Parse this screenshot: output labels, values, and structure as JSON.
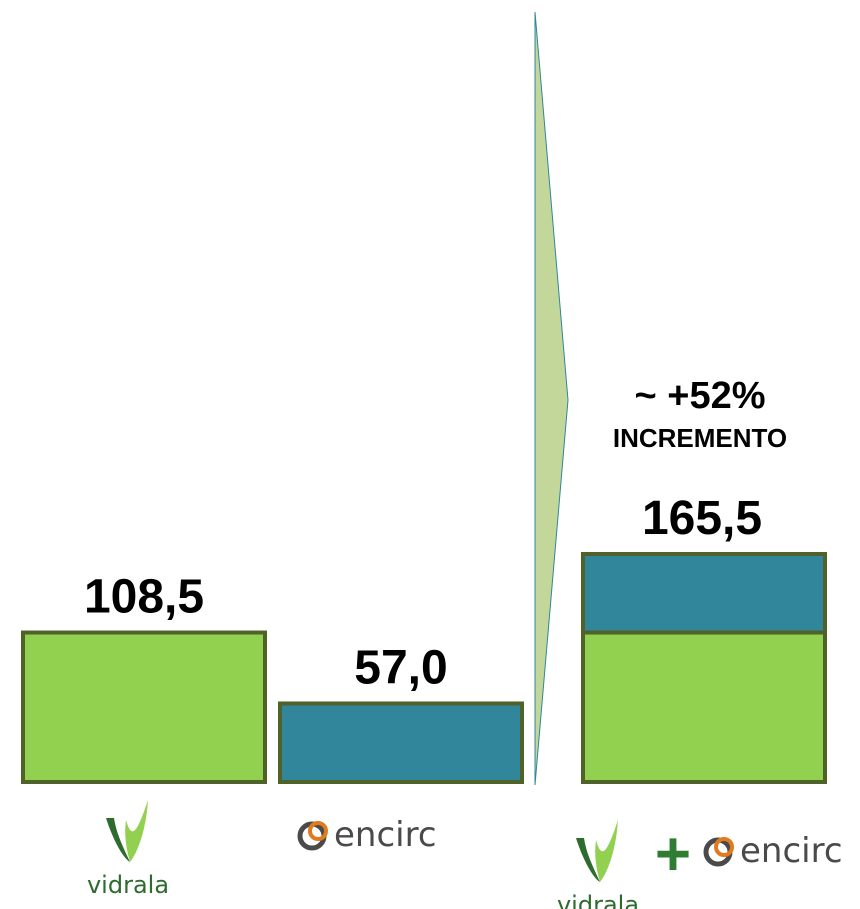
{
  "chart_data": {
    "type": "bar",
    "categories": [
      "vidrala",
      "encirc",
      "vidrala + encirc"
    ],
    "series": [
      {
        "name": "vidrala",
        "values": [
          108.5,
          0,
          108.5
        ]
      },
      {
        "name": "encirc",
        "values": [
          0,
          57.0,
          57.0
        ]
      }
    ],
    "data_labels": [
      "108,5",
      "57,0",
      "165,5"
    ],
    "annotation": {
      "line1": "~ +52%",
      "line2": "INCREMENTO"
    },
    "ylim": [
      0,
      165.5
    ],
    "grid": false,
    "legend": "none"
  },
  "logos": {
    "vidrala": "vidrala",
    "encirc": "encirc",
    "plus": "+"
  },
  "colors": {
    "vidrala_green": "#92D050",
    "encirc_teal": "#31869B",
    "bar_outline": "#4F6228",
    "arrow_fill": "#C4D79B",
    "arrow_stroke": "#31869B",
    "logo_dark_green": "#2E6B2E",
    "logo_gray": "#4A4A4A",
    "logo_orange": "#E07B1E",
    "plus_green": "#2E7D32"
  }
}
